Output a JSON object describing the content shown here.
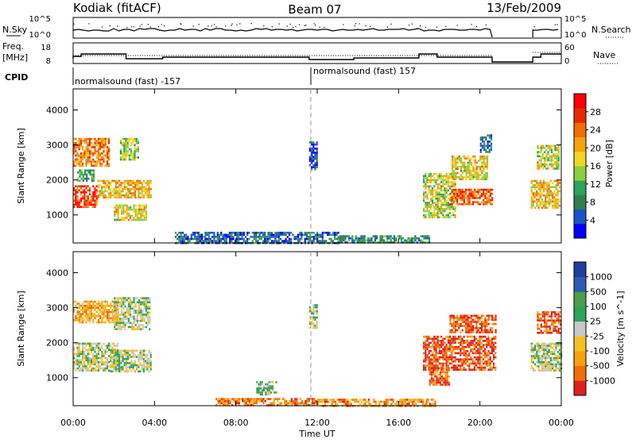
{
  "header": {
    "station": "Kodiak (fitACF)",
    "beam": "Beam 07",
    "date": "13/Feb/2009"
  },
  "top_strip": {
    "nsky_label": "N.Sky",
    "nsearch_label": "N.Search",
    "y_left_ticks": [
      "10^5",
      "10^0"
    ],
    "y_right_ticks": [
      "10^5",
      "10^0"
    ]
  },
  "freq_strip": {
    "freq_label": [
      "Freq.",
      "[MHz]"
    ],
    "nave_label": "Nave",
    "y_left_ticks": [
      "18",
      "8"
    ],
    "y_right_ticks": [
      "60",
      "0"
    ]
  },
  "cpid": {
    "label": "CPID",
    "modes": [
      {
        "text": "normalsound (fast) -157"
      },
      {
        "text": "normalsound (fast) 157"
      }
    ]
  },
  "x_axis": {
    "title": "Time UT",
    "ticks": [
      "00:00",
      "04:00",
      "08:00",
      "12:00",
      "16:00",
      "20:00",
      "00:00"
    ]
  },
  "chart_data": [
    {
      "type": "heatmap",
      "name": "power",
      "ylabel": "Slant Range [km]",
      "yticks": [
        1000,
        2000,
        3000,
        4000
      ],
      "ylim": [
        200,
        4600
      ],
      "xlim": [
        0,
        24
      ],
      "colorbar": {
        "title": "Power [dB]",
        "ticks": [
          "28",
          "24",
          "20",
          "16",
          "12",
          "8",
          "4"
        ],
        "colors": [
          "#0000ff",
          "#1c54c8",
          "#307f50",
          "#2ea35a",
          "#88d040",
          "#f3d528",
          "#f5a20e",
          "#f26c07",
          "#e82a02",
          "#ff0000"
        ]
      },
      "regions": [
        {
          "t": [
            0.0,
            1.2
          ],
          "r": [
            1250,
            1850
          ],
          "level": 0.85
        },
        {
          "t": [
            0.0,
            1.8
          ],
          "r": [
            2400,
            3200
          ],
          "level": 0.72
        },
        {
          "t": [
            1.2,
            3.8
          ],
          "r": [
            1500,
            2000
          ],
          "level": 0.62
        },
        {
          "t": [
            2.0,
            3.6
          ],
          "r": [
            850,
            1300
          ],
          "level": 0.55
        },
        {
          "t": [
            2.3,
            3.2
          ],
          "r": [
            2600,
            3200
          ],
          "level": 0.45
        },
        {
          "t": [
            0.2,
            1.0
          ],
          "r": [
            1950,
            2300
          ],
          "level": 0.35
        },
        {
          "t": [
            11.6,
            12.0
          ],
          "r": [
            2300,
            3100
          ],
          "level": 0.12
        },
        {
          "t": [
            5.0,
            13.0
          ],
          "r": [
            200,
            520
          ],
          "level": 0.18
        },
        {
          "t": [
            13.0,
            17.5
          ],
          "r": [
            200,
            420
          ],
          "level": 0.3
        },
        {
          "t": [
            17.2,
            18.8
          ],
          "r": [
            950,
            2200
          ],
          "level": 0.5
        },
        {
          "t": [
            18.5,
            20.6
          ],
          "r": [
            1300,
            1750
          ],
          "level": 0.8
        },
        {
          "t": [
            18.6,
            20.4
          ],
          "r": [
            2000,
            2700
          ],
          "level": 0.55
        },
        {
          "t": [
            20.0,
            20.6
          ],
          "r": [
            2800,
            3300
          ],
          "level": 0.2
        },
        {
          "t": [
            22.5,
            23.9
          ],
          "r": [
            1200,
            2000
          ],
          "level": 0.6
        },
        {
          "t": [
            22.8,
            23.9
          ],
          "r": [
            2300,
            3000
          ],
          "level": 0.5
        }
      ]
    },
    {
      "type": "heatmap",
      "name": "velocity",
      "ylabel": "Slant Range [km]",
      "yticks": [
        1000,
        2000,
        3000,
        4000
      ],
      "ylim": [
        200,
        4600
      ],
      "xlim": [
        0,
        24
      ],
      "colorbar": {
        "title": "Velocity [m s^-1]",
        "ticks": [
          "1000",
          "500",
          "100",
          "25",
          "-25",
          "-100",
          "-500",
          "-1000"
        ],
        "colors": [
          "#e02020",
          "#f26c07",
          "#f5a20e",
          "#f5c020",
          "#c8c8c8",
          "#2ea35a",
          "#4c9e4c",
          "#2c5cb4",
          "#1e3ea0"
        ]
      },
      "regions": [
        {
          "t": [
            0.0,
            2.2
          ],
          "r": [
            1200,
            2000
          ],
          "level": 0.5
        },
        {
          "t": [
            1.8,
            3.8
          ],
          "r": [
            1200,
            1800
          ],
          "level": 0.5
        },
        {
          "t": [
            0.0,
            2.2
          ],
          "r": [
            2600,
            3200
          ],
          "level": 0.3
        },
        {
          "t": [
            2.0,
            3.8
          ],
          "r": [
            2400,
            3300
          ],
          "level": 0.5
        },
        {
          "t": [
            11.6,
            12.0
          ],
          "r": [
            2400,
            3100
          ],
          "level": 0.5
        },
        {
          "t": [
            7.0,
            12.0
          ],
          "r": [
            200,
            420
          ],
          "level": 0.2
        },
        {
          "t": [
            12.0,
            17.8
          ],
          "r": [
            200,
            400
          ],
          "level": 0.25
        },
        {
          "t": [
            9.0,
            10.0
          ],
          "r": [
            500,
            900
          ],
          "level": 0.6
        },
        {
          "t": [
            17.2,
            20.8
          ],
          "r": [
            1200,
            2200
          ],
          "level": 0.12
        },
        {
          "t": [
            17.5,
            18.5
          ],
          "r": [
            800,
            1300
          ],
          "level": 0.15
        },
        {
          "t": [
            18.5,
            20.8
          ],
          "r": [
            2300,
            2800
          ],
          "level": 0.12
        },
        {
          "t": [
            22.5,
            24.0
          ],
          "r": [
            1200,
            2000
          ],
          "level": 0.5
        },
        {
          "t": [
            22.8,
            24.0
          ],
          "r": [
            2300,
            2900
          ],
          "level": 0.12
        }
      ]
    }
  ]
}
